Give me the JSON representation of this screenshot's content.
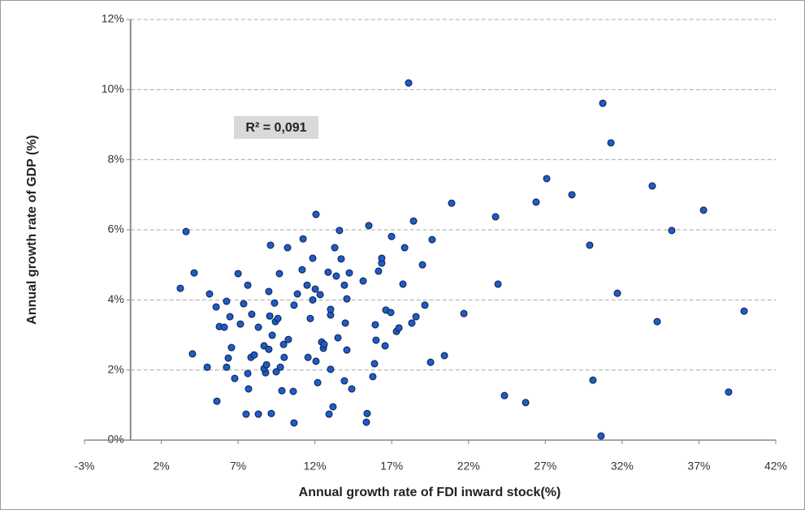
{
  "chart_data": {
    "type": "scatter",
    "xlabel": "Annual growth rate of FDI inward stock(%)",
    "ylabel": "Annual growth rate of GDP (%)",
    "annotation": "R² = 0,091",
    "color": "#1f5cc4",
    "grid": true,
    "xlim": [
      -3,
      42
    ],
    "ylim": [
      0,
      12
    ],
    "xticks": [
      {
        "value": -3,
        "label": "-3%"
      },
      {
        "value": 2,
        "label": "2%"
      },
      {
        "value": 7,
        "label": "7%"
      },
      {
        "value": 12,
        "label": "12%"
      },
      {
        "value": 17,
        "label": "17%"
      },
      {
        "value": 22,
        "label": "22%"
      },
      {
        "value": 27,
        "label": "27%"
      },
      {
        "value": 32,
        "label": "32%"
      },
      {
        "value": 37,
        "label": "37%"
      },
      {
        "value": 42,
        "label": "42%"
      }
    ],
    "yticks": [
      {
        "value": 0,
        "label": "0%"
      },
      {
        "value": 2,
        "label": "2%"
      },
      {
        "value": 4,
        "label": "4%"
      },
      {
        "value": 6,
        "label": "6%"
      },
      {
        "value": 8,
        "label": "8%"
      },
      {
        "value": 10,
        "label": "10%"
      },
      {
        "value": 12,
        "label": "12%"
      }
    ],
    "x": [
      3.24,
      3.61,
      4.14,
      4.03,
      4.99,
      5.14,
      5.57,
      5.62,
      5.78,
      6.1,
      6.25,
      6.36,
      6.47,
      6.57,
      6.25,
      6.78,
      7.0,
      7.15,
      7.36,
      7.52,
      7.63,
      7.68,
      7.63,
      7.84,
      8.05,
      7.89,
      8.32,
      8.32,
      8.69,
      8.79,
      8.69,
      8.85,
      9.0,
      9.06,
      9.0,
      9.11,
      9.37,
      9.43,
      9.22,
      9.48,
      9.59,
      9.69,
      9.75,
      9.85,
      9.96,
      10.0,
      10.27,
      10.59,
      10.64,
      10.22,
      10.64,
      10.86,
      12.07,
      11.23,
      11.17,
      11.49,
      11.55,
      11.7,
      11.86,
      11.86,
      12.02,
      12.18,
      12.07,
      12.34,
      12.44,
      12.55,
      12.6,
      12.86,
      12.92,
      13.02,
      13.02,
      13.18,
      13.29,
      13.39,
      13.5,
      13.6,
      13.71,
      13.92,
      13.92,
      13.98,
      14.08,
      14.24,
      14.4,
      14.08,
      15.14,
      15.4,
      15.35,
      15.51,
      15.77,
      15.88,
      15.93,
      15.98,
      16.14,
      16.35,
      16.35,
      16.62,
      16.57,
      16.94,
      16.99,
      17.31,
      17.47,
      17.73,
      17.84,
      18.1,
      18.31,
      18.42,
      18.58,
      19.0,
      19.16,
      19.53,
      19.63,
      20.43,
      20.9,
      21.7,
      23.76,
      23.92,
      24.34,
      25.72,
      26.4,
      27.09,
      28.73,
      29.89,
      30.1,
      30.63,
      30.74,
      31.27,
      31.69,
      33.96,
      34.28,
      35.23,
      37.3,
      38.93,
      39.94,
      9.16,
      13.02
    ],
    "y": [
      4.33,
      5.95,
      4.77,
      2.46,
      2.08,
      4.17,
      3.8,
      1.11,
      3.24,
      3.22,
      3.96,
      2.34,
      3.52,
      2.64,
      2.08,
      1.76,
      4.75,
      3.31,
      3.89,
      0.74,
      4.42,
      1.46,
      1.9,
      2.36,
      2.43,
      3.59,
      3.22,
      0.74,
      2.69,
      1.92,
      2.04,
      2.15,
      4.24,
      3.54,
      2.59,
      5.56,
      3.91,
      3.38,
      2.99,
      1.95,
      3.47,
      4.75,
      2.08,
      1.41,
      2.73,
      2.36,
      2.87,
      1.39,
      0.49,
      5.49,
      3.85,
      4.17,
      6.44,
      5.74,
      4.86,
      4.42,
      2.36,
      3.47,
      4.0,
      5.19,
      4.31,
      1.64,
      2.25,
      4.15,
      2.8,
      2.62,
      2.73,
      4.79,
      0.74,
      3.57,
      2.02,
      0.95,
      5.49,
      4.68,
      2.92,
      5.98,
      5.17,
      4.42,
      1.69,
      3.34,
      2.57,
      4.77,
      1.46,
      4.03,
      4.54,
      0.76,
      0.51,
      6.12,
      1.81,
      2.18,
      3.29,
      2.85,
      4.82,
      5.05,
      5.19,
      3.71,
      2.69,
      3.64,
      5.81,
      3.1,
      3.2,
      4.45,
      5.49,
      10.19,
      3.34,
      6.25,
      3.52,
      5.0,
      3.85,
      2.22,
      5.72,
      2.41,
      6.76,
      3.61,
      6.37,
      4.45,
      1.27,
      1.07,
      6.79,
      7.46,
      7.0,
      5.56,
      1.71,
      0.12,
      9.61,
      8.48,
      4.19,
      7.25,
      3.38,
      5.98,
      6.56,
      1.37,
      3.68,
      0.76,
      3.73
    ]
  }
}
